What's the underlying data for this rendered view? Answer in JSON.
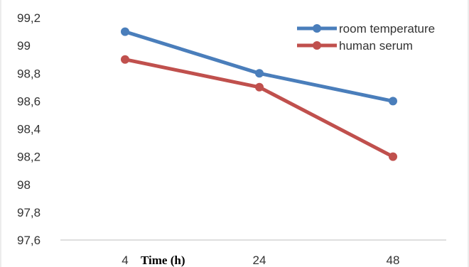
{
  "chart_data": {
    "type": "line",
    "categories": [
      "4",
      "24",
      "48"
    ],
    "series": [
      {
        "name": "room temperature",
        "values": [
          99.1,
          98.8,
          98.6
        ],
        "color": "#4a7ebb"
      },
      {
        "name": "human serum",
        "values": [
          98.9,
          98.7,
          98.2
        ],
        "color": "#c0504d"
      }
    ],
    "xlabel": "Time (h)",
    "ylabel": "",
    "ylim": [
      97.6,
      99.2
    ],
    "ytick_labels": [
      "97,6",
      "97,8",
      "98",
      "98,2",
      "98,4",
      "98,6",
      "98,8",
      "99",
      "99,2"
    ],
    "grid": false,
    "legend_position": "top-right"
  }
}
